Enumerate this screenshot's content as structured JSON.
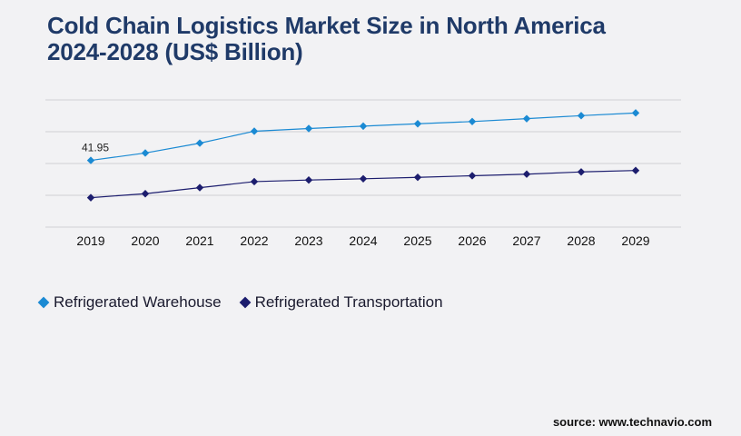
{
  "chart_data": {
    "type": "line",
    "title_line1": "Cold Chain Logistics Market Size in North America",
    "title_line2": "2024-2028 (US$ Billion)",
    "x": [
      "2019",
      "2020",
      "2021",
      "2022",
      "2023",
      "2024",
      "2025",
      "2026",
      "2027",
      "2028",
      "2029"
    ],
    "series": [
      {
        "name": "Refrigerated Warehouse",
        "color": "#1b8ad3",
        "values": [
          41.95,
          46.6,
          52.8,
          60.3,
          62.0,
          63.5,
          65.0,
          66.4,
          68.2,
          70.1,
          71.8
        ],
        "data_labels": {
          "0": "41.95"
        }
      },
      {
        "name": "Refrigerated Transportation",
        "color": "#1c1d6e",
        "values": [
          18.5,
          21.0,
          24.8,
          28.6,
          29.6,
          30.4,
          31.3,
          32.3,
          33.3,
          34.7,
          35.6
        ],
        "data_labels": {}
      }
    ],
    "ylim": [
      0,
      80
    ],
    "grid": true,
    "legend_position": "bottom-left"
  },
  "source": "source: www.technavio.com"
}
